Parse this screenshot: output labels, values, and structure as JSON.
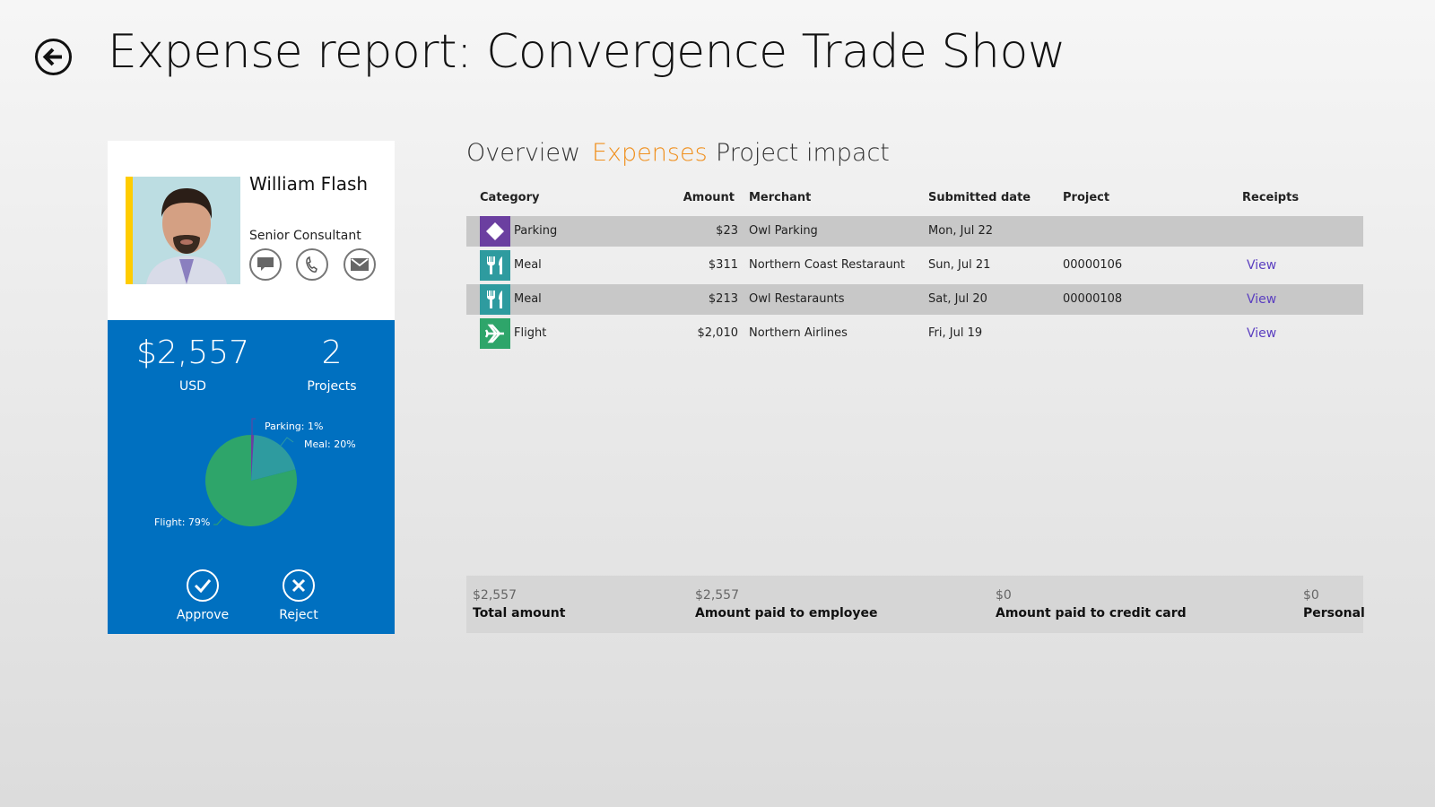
{
  "header": {
    "title": "Expense report: Convergence Trade Show",
    "back_icon": "arrow-left-icon"
  },
  "employee": {
    "name": "William Flash",
    "role": "Senior Consultant",
    "accent": "#ffcc00",
    "contact": [
      {
        "icon": "message-icon"
      },
      {
        "icon": "phone-icon"
      },
      {
        "icon": "mail-icon"
      }
    ]
  },
  "summary": {
    "total": "$2,557",
    "currency": "USD",
    "projects": "2",
    "projects_label": "Projects",
    "bg": "#0070c0"
  },
  "chart_data": {
    "type": "pie",
    "slices": [
      {
        "label": "Parking",
        "value": 1,
        "text": "Parking: 1%",
        "color": "#6b3fa0"
      },
      {
        "label": "Meal",
        "value": 20,
        "text": "Meal: 20%",
        "color": "#2e9b9f"
      },
      {
        "label": "Flight",
        "value": 79,
        "text": "Flight: 79%",
        "color": "#2ea56a"
      }
    ]
  },
  "actions": {
    "approve": "Approve",
    "reject": "Reject"
  },
  "tabs": [
    {
      "label": "Overview"
    },
    {
      "label": "Expenses",
      "active": true
    },
    {
      "label": "Project impact"
    }
  ],
  "table": {
    "columns": [
      "Category",
      "Amount",
      "Merchant",
      "Submitted date",
      "Project",
      "Receipts"
    ],
    "rows": [
      {
        "category": "Parking",
        "icon": "parking-icon",
        "color": "#6b3fa0",
        "amount": "$23",
        "merchant": "Owl Parking",
        "date": "Mon, Jul 22",
        "project": "",
        "receipt": ""
      },
      {
        "category": "Meal",
        "icon": "fork-knife-icon",
        "color": "#2e9b9f",
        "amount": "$311",
        "merchant": "Northern Coast Restaraunt",
        "date": "Sun, Jul 21",
        "project": "00000106",
        "receipt": "View"
      },
      {
        "category": "Meal",
        "icon": "fork-knife-icon",
        "color": "#2e9b9f",
        "amount": "$213",
        "merchant": "Owl Restaraunts",
        "date": "Sat, Jul 20",
        "project": "00000108",
        "receipt": "View"
      },
      {
        "category": "Flight",
        "icon": "airplane-icon",
        "color": "#2ea56a",
        "amount": "$2,010",
        "merchant": "Northern Airlines",
        "date": "Fri, Jul 19",
        "project": "",
        "receipt": "View"
      }
    ]
  },
  "totals": [
    {
      "value": "$2,557",
      "label": "Total amount"
    },
    {
      "value": "$2,557",
      "label": "Amount paid to employee"
    },
    {
      "value": "$0",
      "label": "Amount paid to credit card"
    },
    {
      "value": "$0",
      "label": "Personal"
    }
  ]
}
